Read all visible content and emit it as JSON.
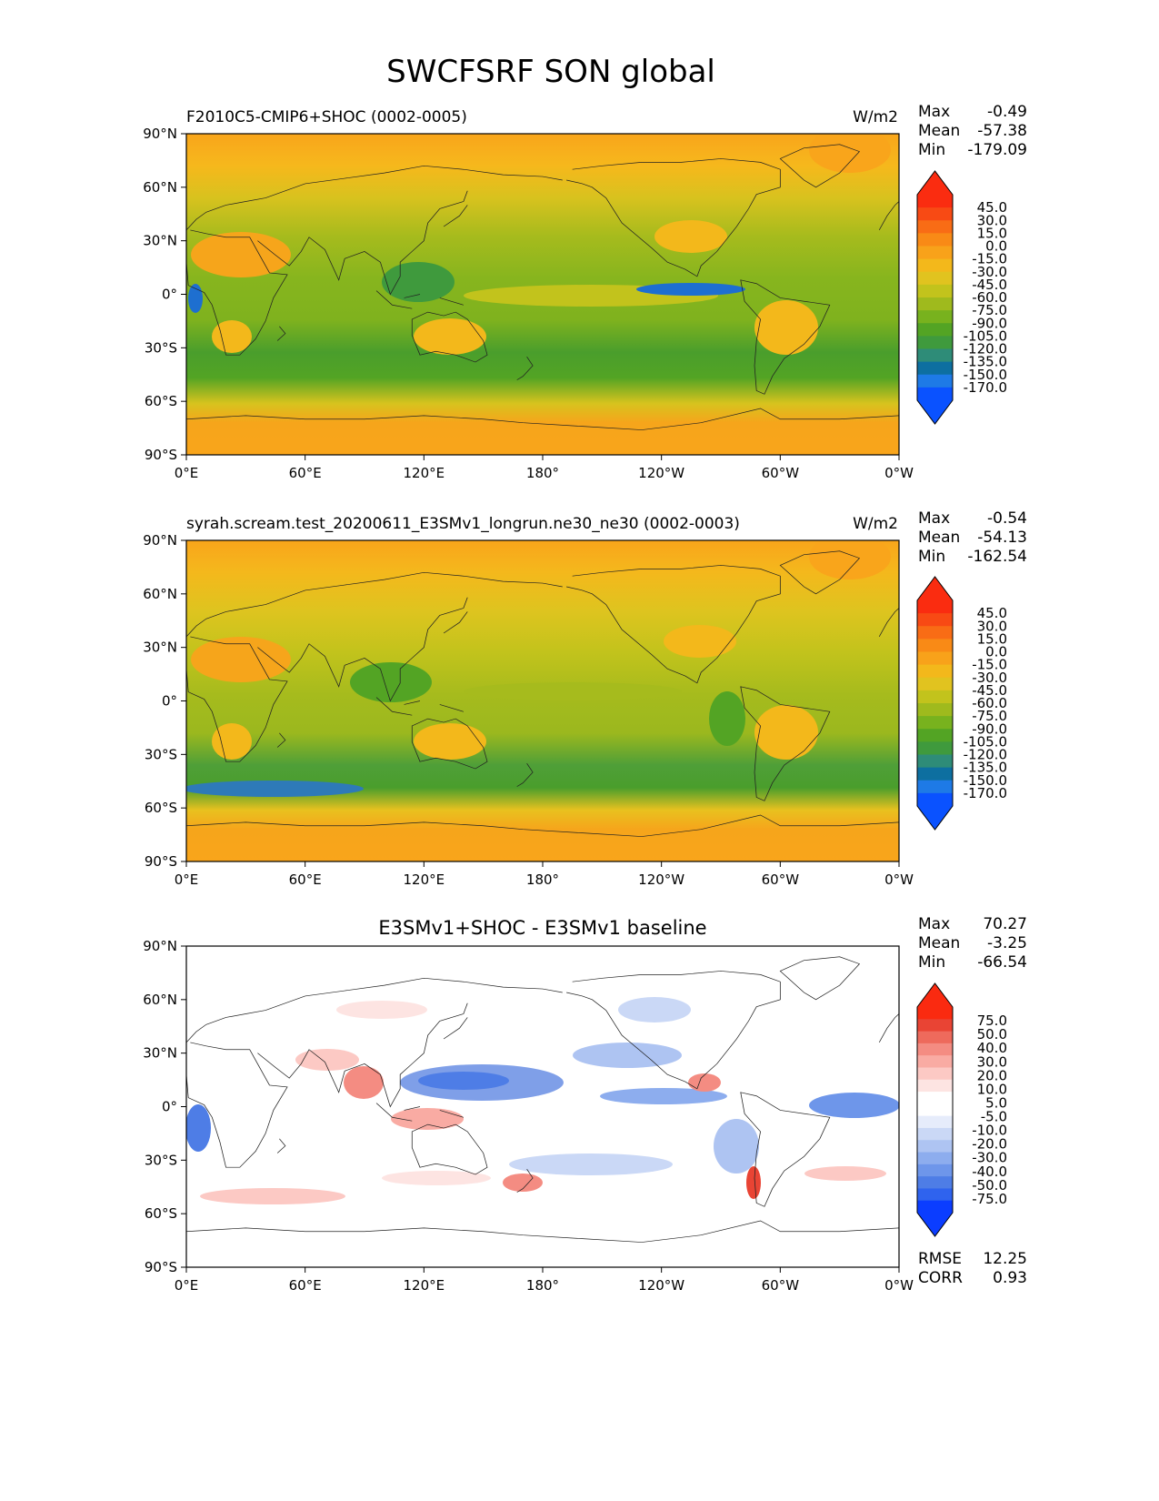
{
  "figure_title": "SWCFSRF SON global",
  "colors": {
    "test_cmap": [
      "#0a52ff",
      "#1e7ae6",
      "#0d6fa0",
      "#2e8c78",
      "#3f9a3d",
      "#53a424",
      "#78b21e",
      "#9fba1d",
      "#c2c31c",
      "#e1c31f",
      "#f3b81b",
      "#f8a21a",
      "#f98a16",
      "#f96c15",
      "#f84a14",
      "#fa2c10"
    ],
    "diff_cmap": [
      "#0b3dff",
      "#2f63ee",
      "#4e7de6",
      "#6e96ea",
      "#8dadee",
      "#aec4f2",
      "#cad8f6",
      "#e6ecfb",
      "#ffffff",
      "#ffffff",
      "#fde4e2",
      "#fcc9c4",
      "#f9aba3",
      "#f48c82",
      "#ee6a5c",
      "#e94434",
      "#fa2a10"
    ],
    "ocean_test": "#78b21e",
    "land_test": "#f3b81b"
  },
  "chart_data": [
    {
      "type": "heatmap",
      "title_left": "F2010C5-CMIP6+SHOC (0002-0005)",
      "title_right": "W/m2",
      "stats": {
        "max_label": "Max",
        "max": "-0.49",
        "mean_label": "Mean",
        "mean": "-57.38",
        "min_label": "Min",
        "min": "-179.09"
      },
      "colorbar_levels": [
        "45.0",
        "30.0",
        "15.0",
        "0.0",
        "-15.0",
        "-30.0",
        "-45.0",
        "-60.0",
        "-75.0",
        "-90.0",
        "-105.0",
        "-120.0",
        "-135.0",
        "-150.0",
        "-170.0"
      ],
      "x_ticks": [
        "0°E",
        "60°E",
        "120°E",
        "180°",
        "120°W",
        "60°W",
        "0°W"
      ],
      "y_ticks": [
        "90°N",
        "60°N",
        "30°N",
        "0°",
        "30°S",
        "60°S",
        "90°S"
      ],
      "xlim": [
        0,
        360
      ],
      "ylim": [
        -90,
        90
      ]
    },
    {
      "type": "heatmap",
      "title_left": "syrah.scream.test_20200611_E3SMv1_longrun.ne30_ne30 (0002-0003)",
      "title_right": "W/m2",
      "stats": {
        "max_label": "Max",
        "max": "-0.54",
        "mean_label": "Mean",
        "mean": "-54.13",
        "min_label": "Min",
        "min": "-162.54"
      },
      "colorbar_levels": [
        "45.0",
        "30.0",
        "15.0",
        "0.0",
        "-15.0",
        "-30.0",
        "-45.0",
        "-60.0",
        "-75.0",
        "-90.0",
        "-105.0",
        "-120.0",
        "-135.0",
        "-150.0",
        "-170.0"
      ],
      "x_ticks": [
        "0°E",
        "60°E",
        "120°E",
        "180°",
        "120°W",
        "60°W",
        "0°W"
      ],
      "y_ticks": [
        "90°N",
        "60°N",
        "30°N",
        "0°",
        "30°S",
        "60°S",
        "90°S"
      ],
      "xlim": [
        0,
        360
      ],
      "ylim": [
        -90,
        90
      ]
    },
    {
      "type": "heatmap",
      "title_center": "E3SMv1+SHOC - E3SMv1 baseline",
      "stats": {
        "max_label": "Max",
        "max": "70.27",
        "mean_label": "Mean",
        "mean": "-3.25",
        "min_label": "Min",
        "min": "-66.54"
      },
      "colorbar_levels": [
        "75.0",
        "50.0",
        "40.0",
        "30.0",
        "20.0",
        "10.0",
        "5.0",
        "-5.0",
        "-10.0",
        "-20.0",
        "-30.0",
        "-40.0",
        "-50.0",
        "-75.0"
      ],
      "x_ticks": [
        "0°E",
        "60°E",
        "120°E",
        "180°",
        "120°W",
        "60°W",
        "0°W"
      ],
      "y_ticks": [
        "90°N",
        "60°N",
        "30°N",
        "0°",
        "30°S",
        "60°S",
        "90°S"
      ],
      "xlim": [
        0,
        360
      ],
      "ylim": [
        -90,
        90
      ],
      "rmse_label": "RMSE",
      "rmse": "12.25",
      "corr_label": "CORR",
      "corr": "0.93"
    }
  ]
}
